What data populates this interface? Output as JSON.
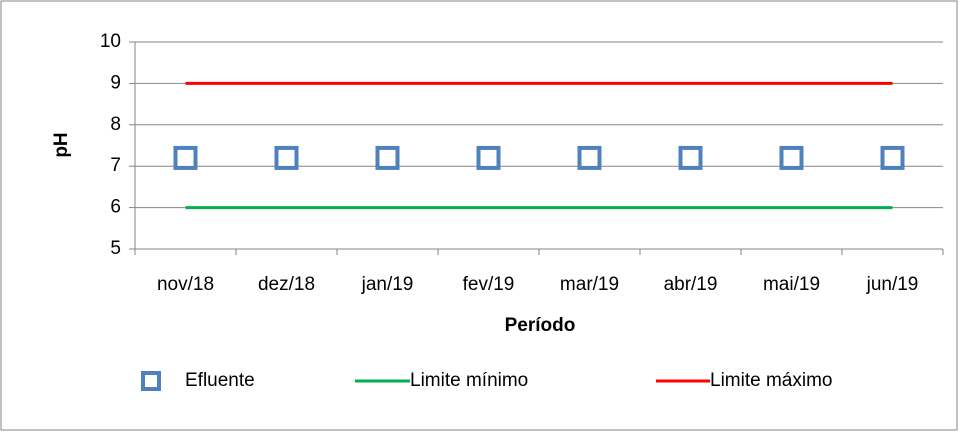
{
  "chart_data": {
    "type": "line",
    "y_label": "pH",
    "x_label": "Período",
    "categories": [
      "nov/18",
      "dez/18",
      "jan/19",
      "fev/19",
      "mar/19",
      "abr/19",
      "mai/19",
      "jun/19"
    ],
    "series": [
      {
        "name": "Efluente",
        "color": "#4f81bd",
        "marker": "square",
        "line": false,
        "values": [
          7.2,
          7.2,
          7.2,
          7.2,
          7.2,
          7.2,
          7.2,
          7.2
        ]
      },
      {
        "name": "Limite mínimo",
        "color": "#00b050",
        "values": [
          6,
          6,
          6,
          6,
          6,
          6,
          6,
          6
        ]
      },
      {
        "name": "Limite máximo",
        "color": "#ff0000",
        "values": [
          9,
          9,
          9,
          9,
          9,
          9,
          9,
          9
        ]
      }
    ],
    "ylim": [
      5,
      10
    ],
    "yticks": [
      5,
      6,
      7,
      8,
      9,
      10
    ],
    "grid": true,
    "legend": "bottom"
  }
}
